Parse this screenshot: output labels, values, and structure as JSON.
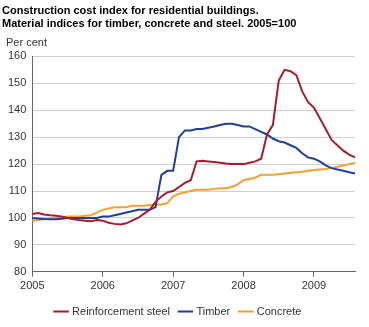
{
  "chart_data": {
    "type": "line",
    "title": [
      "Construction cost index for residential buildings.",
      "Material indices for timber, concrete and steel. 2005=100"
    ],
    "y_label": "Per cent",
    "categories": [
      "2005",
      null,
      null,
      null,
      null,
      null,
      null,
      null,
      null,
      null,
      null,
      null,
      "2006",
      null,
      null,
      null,
      null,
      null,
      null,
      null,
      null,
      null,
      null,
      null,
      "2007",
      null,
      null,
      null,
      null,
      null,
      null,
      null,
      null,
      null,
      null,
      null,
      "2008",
      null,
      null,
      null,
      null,
      null,
      null,
      null,
      null,
      null,
      null,
      null,
      "2009",
      null,
      null,
      null,
      null,
      null,
      null,
      null
    ],
    "series": [
      {
        "name": "Reinforcement steel",
        "color": "#a51c30",
        "values": [
          101.5,
          101.8,
          101.3,
          101,
          100.8,
          100.5,
          100,
          99.5,
          99.2,
          99,
          98.8,
          99.2,
          99,
          98.2,
          97.8,
          97.6,
          98,
          99,
          100,
          101.5,
          103,
          106,
          108,
          109.5,
          110,
          111.5,
          113,
          114,
          121,
          121.2,
          121,
          120.8,
          120.5,
          120.2,
          120,
          120,
          120,
          120.5,
          121,
          122,
          131,
          134.5,
          151,
          155,
          154.5,
          153,
          147,
          143,
          141,
          137,
          133,
          129,
          127,
          125,
          123.5,
          122.5
        ]
      },
      {
        "name": "Timber",
        "color": "#1f3f99",
        "values": [
          100,
          99.8,
          99.6,
          99.5,
          99.5,
          99.7,
          100,
          100,
          100,
          100,
          100,
          100,
          100.5,
          100.5,
          101,
          101.5,
          102,
          102.5,
          103,
          103,
          103,
          104,
          116,
          117.5,
          117.5,
          130,
          132.5,
          132.5,
          133,
          133,
          133.5,
          134,
          134.5,
          135,
          135,
          134.5,
          134,
          134,
          133,
          132,
          131,
          129.5,
          128.5,
          128,
          127,
          126,
          124,
          122.5,
          122,
          121,
          119.5,
          118.5,
          118,
          117.5,
          117,
          116.5
        ]
      },
      {
        "name": "Concrete",
        "color": "#f5a030",
        "values": [
          99,
          99.2,
          99.5,
          99.8,
          100,
          100.2,
          100.5,
          100.5,
          100.5,
          100.8,
          101,
          102,
          103,
          103.5,
          104,
          104,
          104,
          104.5,
          104.5,
          104.5,
          104.8,
          105,
          105,
          105.5,
          108,
          109,
          109.5,
          110,
          110.5,
          110.5,
          110.5,
          110.8,
          111,
          111,
          111.5,
          112.5,
          114,
          114.5,
          115,
          116,
          116,
          116,
          116.2,
          116.5,
          116.8,
          117,
          117.2,
          117.5,
          117.8,
          118,
          118.2,
          118.5,
          119,
          119.5,
          120,
          120.5
        ]
      }
    ],
    "ylim": [
      80,
      160
    ],
    "yticks": [
      80,
      90,
      100,
      110,
      120,
      130,
      140,
      150,
      160
    ],
    "grid": true,
    "legend": "bottom"
  }
}
